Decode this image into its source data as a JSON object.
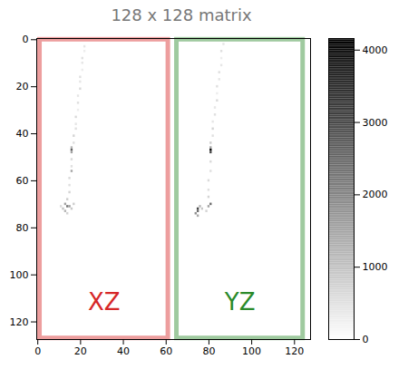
{
  "chart_data": {
    "type": "heatmap",
    "title": "128 x 128 matrix",
    "xlim": [
      -0.5,
      127.5
    ],
    "ylim": [
      127.5,
      -0.5
    ],
    "xticks": [
      0,
      20,
      40,
      60,
      80,
      100,
      120
    ],
    "yticks": [
      0,
      20,
      40,
      60,
      80,
      100,
      120
    ],
    "cells": [
      [
        22,
        3,
        400
      ],
      [
        22,
        5,
        300
      ],
      [
        21,
        8,
        500
      ],
      [
        21,
        10,
        400
      ],
      [
        21,
        13,
        300
      ],
      [
        20,
        16,
        500
      ],
      [
        20,
        18,
        400
      ],
      [
        20,
        21,
        600
      ],
      [
        19,
        24,
        400
      ],
      [
        19,
        27,
        500
      ],
      [
        19,
        30,
        300
      ],
      [
        18,
        33,
        600
      ],
      [
        18,
        36,
        400
      ],
      [
        18,
        38,
        500
      ],
      [
        17,
        41,
        700
      ],
      [
        17,
        44,
        500
      ],
      [
        16,
        46,
        1200
      ],
      [
        16,
        47,
        2600
      ],
      [
        16,
        48,
        1500
      ],
      [
        16,
        51,
        600
      ],
      [
        16,
        54,
        500
      ],
      [
        16,
        56,
        1400
      ],
      [
        15,
        59,
        600
      ],
      [
        15,
        62,
        500
      ],
      [
        15,
        65,
        700
      ],
      [
        14,
        68,
        800
      ],
      [
        13,
        70,
        1500
      ],
      [
        14,
        71,
        2200
      ],
      [
        15,
        71,
        1600
      ],
      [
        12,
        72,
        1000
      ],
      [
        16,
        72,
        900
      ],
      [
        13,
        73,
        1200
      ],
      [
        17,
        70,
        800
      ],
      [
        11,
        71,
        600
      ],
      [
        14,
        74,
        700
      ],
      [
        87,
        2,
        400
      ],
      [
        86,
        5,
        500
      ],
      [
        86,
        8,
        300
      ],
      [
        86,
        11,
        400
      ],
      [
        85,
        14,
        500
      ],
      [
        85,
        17,
        400
      ],
      [
        84,
        20,
        500
      ],
      [
        84,
        23,
        300
      ],
      [
        84,
        26,
        600
      ],
      [
        83,
        29,
        400
      ],
      [
        83,
        32,
        500
      ],
      [
        82,
        35,
        400
      ],
      [
        82,
        38,
        700
      ],
      [
        82,
        41,
        500
      ],
      [
        81,
        44,
        800
      ],
      [
        81,
        46,
        1500
      ],
      [
        81,
        47,
        4100
      ],
      [
        81,
        48,
        3000
      ],
      [
        81,
        52,
        600
      ],
      [
        81,
        56,
        500
      ],
      [
        80,
        60,
        600
      ],
      [
        80,
        64,
        500
      ],
      [
        80,
        67,
        700
      ],
      [
        81,
        70,
        2400
      ],
      [
        80,
        71,
        1500
      ],
      [
        76,
        71,
        1200
      ],
      [
        75,
        72,
        3000
      ],
      [
        75,
        73,
        2500
      ],
      [
        74,
        74,
        1800
      ],
      [
        75,
        75,
        1400
      ],
      [
        77,
        72,
        900
      ],
      [
        79,
        73,
        700
      ]
    ],
    "colorbar": {
      "range": [
        0,
        4160
      ],
      "ticks": [
        0,
        1000,
        2000,
        3000,
        4000
      ]
    },
    "regions": [
      {
        "label": "XZ",
        "color": "#d62728",
        "x": [
          1,
          61
        ],
        "y": [
          0,
          127
        ]
      },
      {
        "label": "YZ",
        "color": "#2a8a2a",
        "x": [
          65,
          124
        ],
        "y": [
          0,
          127
        ]
      }
    ]
  }
}
